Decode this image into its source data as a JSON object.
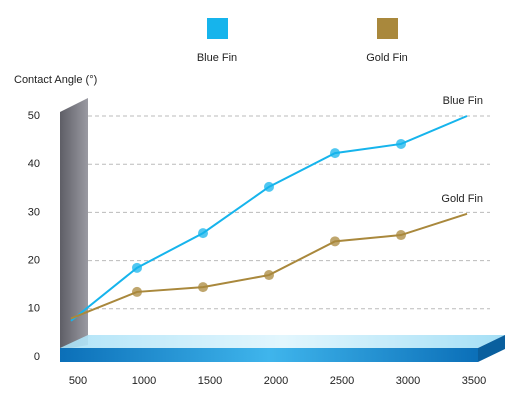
{
  "chart_data": {
    "type": "line",
    "y_label": "Contact Angle (°)",
    "x": [
      500,
      1000,
      1500,
      2000,
      2500,
      3000,
      3500
    ],
    "xlim": [
      500,
      3500
    ],
    "xticks": [
      500,
      1000,
      1500,
      2000,
      2500,
      3000,
      3500
    ],
    "ylim": [
      0,
      50
    ],
    "yticks": [
      0,
      10,
      20,
      30,
      40,
      50
    ],
    "grid": true,
    "legend": "top",
    "series": [
      {
        "name": "Blue Fin",
        "color": "#16b4ec",
        "values": [
          7.5,
          18.5,
          25.7,
          35.3,
          42.3,
          44.2,
          50
        ]
      },
      {
        "name": "Gold Fin",
        "color": "#a9883c",
        "values": [
          8,
          13.5,
          14.5,
          17,
          24,
          25.3,
          29.7
        ]
      }
    ]
  }
}
